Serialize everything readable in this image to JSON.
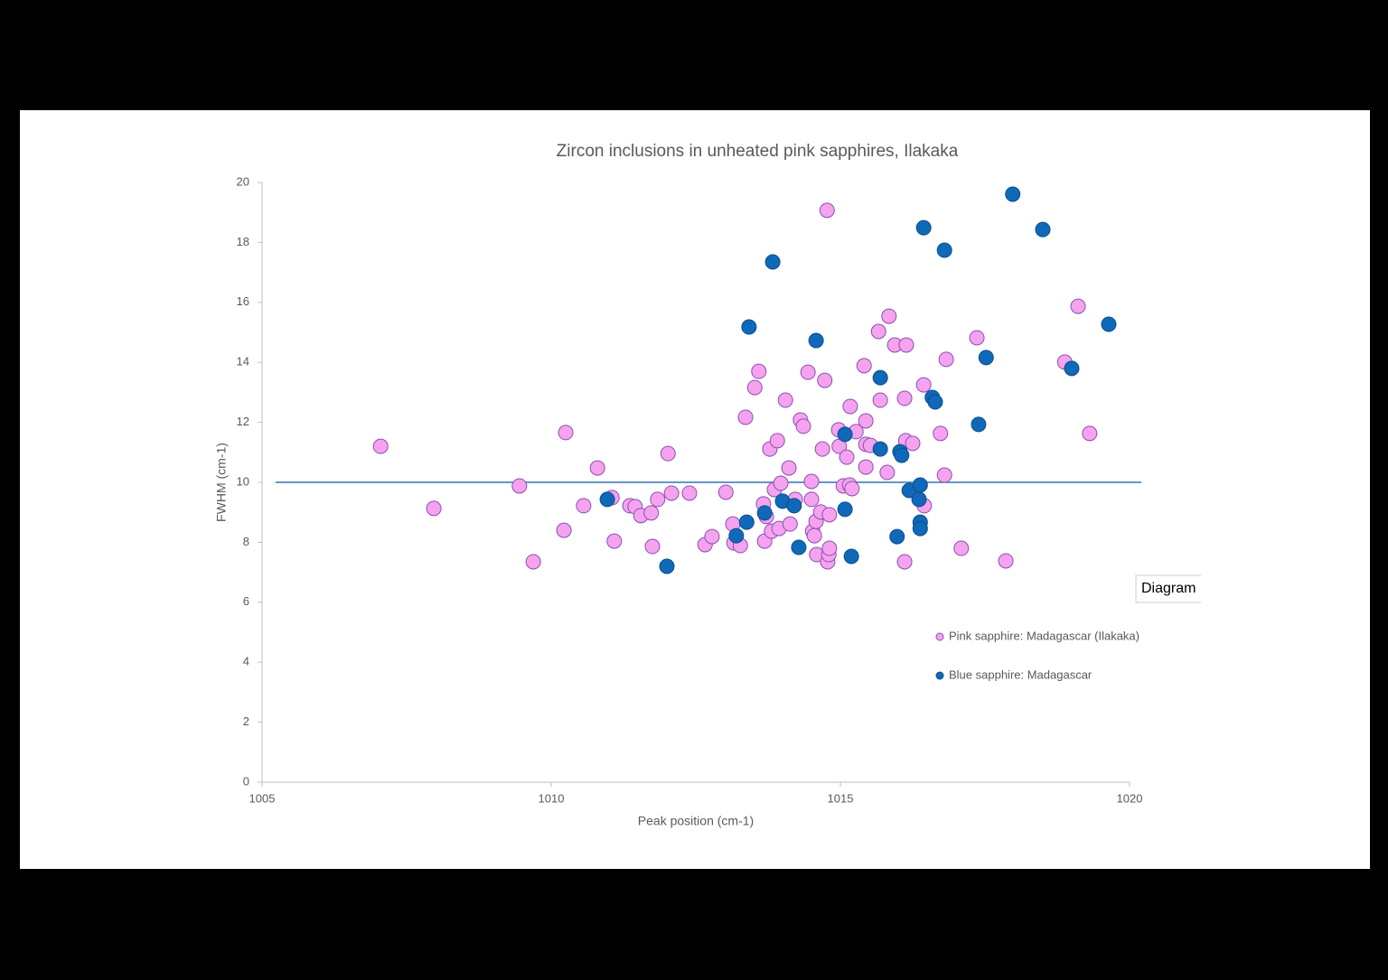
{
  "chart_data": {
    "type": "scatter",
    "title": "Zircon inclusions in unheated pink sapphires, Ilakaka",
    "xlabel": "Peak position (cm-1)",
    "ylabel": "FWHM (cm-1)",
    "xlim": [
      1005,
      1020
    ],
    "xticks": [
      1005,
      1010,
      1015,
      1020
    ],
    "ylim": [
      0,
      20
    ],
    "yticks": [
      0,
      2,
      4,
      6,
      8,
      10,
      12,
      14,
      16,
      18,
      20
    ],
    "hline": 10,
    "legend": "right",
    "popup": "Diagram",
    "series": [
      {
        "name": "Pink sapphire: Madagascar (Ilakaka)",
        "color": "#f5a3ee",
        "x": [
          1007.05,
          1007.97,
          1009.45,
          1009.69,
          1010.25,
          1010.22,
          1010.56,
          1010.8,
          1011.05,
          1011.09,
          1011.36,
          1011.45,
          1011.55,
          1011.73,
          1011.75,
          1011.84,
          1012.02,
          1012.08,
          1012.39,
          1012.66,
          1012.78,
          1013.02,
          1013.14,
          1013.16,
          1013.27,
          1013.36,
          1013.52,
          1013.59,
          1013.67,
          1013.69,
          1013.72,
          1013.78,
          1013.81,
          1013.86,
          1013.91,
          1013.94,
          1013.97,
          1014.05,
          1014.11,
          1014.13,
          1014.22,
          1014.31,
          1014.36,
          1014.44,
          1014.5,
          1014.5,
          1014.52,
          1014.55,
          1014.58,
          1014.59,
          1014.66,
          1014.69,
          1014.73,
          1014.77,
          1014.78,
          1014.8,
          1014.81,
          1014.81,
          1014.97,
          1014.98,
          1015.05,
          1015.11,
          1015.16,
          1015.17,
          1015.2,
          1015.27,
          1015.41,
          1015.44,
          1015.44,
          1015.44,
          1015.52,
          1015.66,
          1015.69,
          1015.81,
          1015.84,
          1015.94,
          1016.11,
          1016.11,
          1016.13,
          1016.14,
          1016.25,
          1016.44,
          1016.45,
          1016.73,
          1016.8,
          1016.83,
          1017.09,
          1017.36,
          1017.86,
          1018.88,
          1019.11,
          1019.31
        ],
        "values": [
          11.2,
          9.13,
          9.88,
          7.35,
          11.66,
          8.4,
          9.22,
          10.48,
          9.49,
          8.04,
          9.22,
          9.19,
          8.89,
          8.98,
          7.86,
          9.43,
          10.96,
          9.64,
          9.64,
          7.92,
          8.19,
          9.67,
          8.61,
          7.98,
          7.89,
          12.17,
          13.16,
          13.7,
          9.28,
          8.04,
          8.86,
          11.11,
          8.37,
          9.76,
          11.39,
          8.46,
          9.97,
          12.74,
          10.48,
          8.61,
          9.43,
          12.08,
          11.87,
          13.67,
          10.03,
          9.43,
          8.37,
          8.22,
          8.7,
          7.59,
          9.01,
          11.11,
          13.4,
          19.07,
          7.35,
          7.59,
          7.8,
          8.92,
          11.75,
          11.2,
          9.88,
          10.84,
          9.91,
          12.53,
          9.79,
          11.69,
          13.89,
          12.05,
          10.51,
          11.27,
          11.23,
          15.03,
          12.74,
          10.33,
          15.54,
          14.58,
          7.35,
          12.8,
          11.39,
          14.58,
          11.3,
          13.25,
          9.22,
          11.63,
          10.24,
          14.1,
          7.8,
          14.82,
          7.38,
          14.01,
          15.87,
          11.63
        ]
      },
      {
        "name": "Blue sapphire: Madagascar",
        "color": "#1068b8",
        "x": [
          1010.97,
          1012.0,
          1013.2,
          1013.38,
          1013.42,
          1013.69,
          1013.83,
          1014.0,
          1014.2,
          1014.28,
          1014.58,
          1015.08,
          1015.08,
          1015.19,
          1015.69,
          1015.69,
          1015.98,
          1016.03,
          1016.06,
          1016.19,
          1016.38,
          1016.36,
          1016.38,
          1016.38,
          1016.44,
          1016.59,
          1016.64,
          1016.8,
          1017.39,
          1017.52,
          1017.98,
          1018.5,
          1019.0,
          1019.64
        ],
        "values": [
          9.43,
          7.2,
          8.22,
          8.67,
          15.18,
          8.98,
          17.35,
          9.37,
          9.22,
          7.83,
          14.73,
          11.6,
          9.1,
          7.53,
          13.49,
          11.11,
          8.19,
          11.02,
          10.9,
          9.73,
          9.91,
          9.43,
          8.67,
          8.46,
          18.49,
          12.83,
          12.68,
          17.74,
          11.93,
          14.16,
          19.61,
          18.43,
          13.8,
          15.27
        ]
      }
    ]
  }
}
